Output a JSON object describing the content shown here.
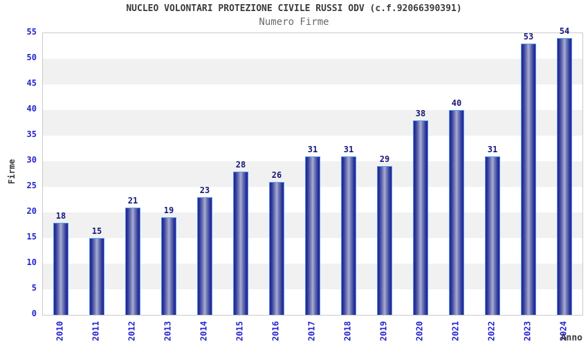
{
  "title": "NUCLEO VOLONTARI PROTEZIONE CIVILE RUSSI ODV (c.f.92066390391)",
  "subtitle": "Numero Firme",
  "chart_data": {
    "type": "bar",
    "title": "NUCLEO VOLONTARI PROTEZIONE CIVILE RUSSI ODV (c.f.92066390391)",
    "subtitle": "Numero Firme",
    "categories": [
      "2010",
      "2011",
      "2012",
      "2013",
      "2014",
      "2015",
      "2016",
      "2017",
      "2018",
      "2019",
      "2020",
      "2021",
      "2022",
      "2023",
      "2024"
    ],
    "values": [
      18,
      15,
      21,
      19,
      23,
      28,
      26,
      31,
      31,
      29,
      38,
      40,
      31,
      53,
      54
    ],
    "xlabel": "Anno",
    "ylabel": "Firme",
    "ylim": [
      0,
      55
    ],
    "ytick_step": 5,
    "grid": "alternating-horizontal-bands",
    "legend": "none",
    "value_labels_shown": true,
    "colors": {
      "tick_label": "#2424cc",
      "value_label": "#16167a",
      "title": "#3a3a3a",
      "subtitle": "#686868",
      "bar_dark": "#22228d",
      "bar_light": "#a6aed4",
      "bar_border": "#4d9bf5",
      "band": "#f1f1f1",
      "plot_border": "#c9c9c9",
      "background": "#ffffff"
    }
  }
}
